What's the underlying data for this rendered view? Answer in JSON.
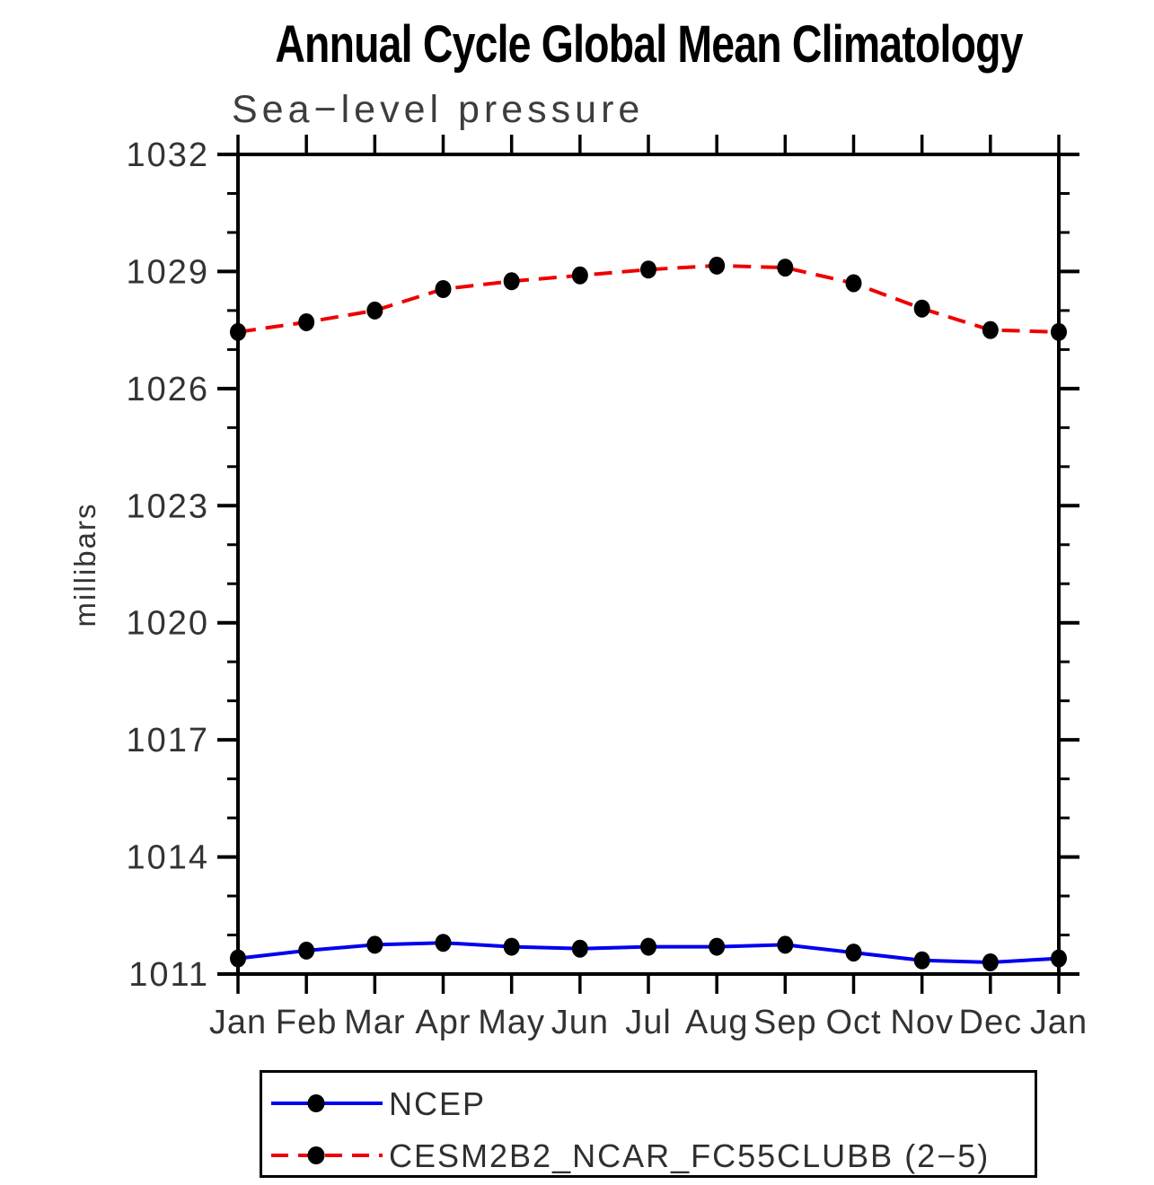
{
  "chart_data": {
    "type": "line",
    "title": "Annual Cycle Global Mean Climatology",
    "subtitle": "Sea−level pressure",
    "ylabel": "millibars",
    "xlabel": "",
    "categories": [
      "Jan",
      "Feb",
      "Mar",
      "Apr",
      "May",
      "Jun",
      "Jul",
      "Aug",
      "Sep",
      "Oct",
      "Nov",
      "Dec",
      "Jan"
    ],
    "series": [
      {
        "name": "NCEP",
        "line_color": "#0000ee",
        "line_style": "solid",
        "marker": "filled-circle",
        "marker_color": "#000000",
        "values": [
          1011.4,
          1011.6,
          1011.75,
          1011.8,
          1011.7,
          1011.65,
          1011.7,
          1011.7,
          1011.75,
          1011.55,
          1011.35,
          1011.3,
          1011.4
        ]
      },
      {
        "name": "CESM2B2_NCAR_FC55CLUBB (2−5)",
        "line_color": "#ee0000",
        "line_style": "dashed",
        "marker": "filled-circle",
        "marker_color": "#000000",
        "values": [
          1027.45,
          1027.7,
          1028.0,
          1028.55,
          1028.75,
          1028.9,
          1029.05,
          1029.15,
          1029.1,
          1028.7,
          1028.05,
          1027.5,
          1027.45
        ]
      }
    ],
    "ylim": [
      1011,
      1032
    ],
    "y_major_ticks": [
      1011,
      1014,
      1017,
      1020,
      1023,
      1026,
      1029,
      1032
    ],
    "y_minor_step": 1,
    "grid": false,
    "legend_position": "bottom",
    "axis_color": "#000000",
    "label_color": "#333333",
    "background_color": "#ffffff"
  }
}
